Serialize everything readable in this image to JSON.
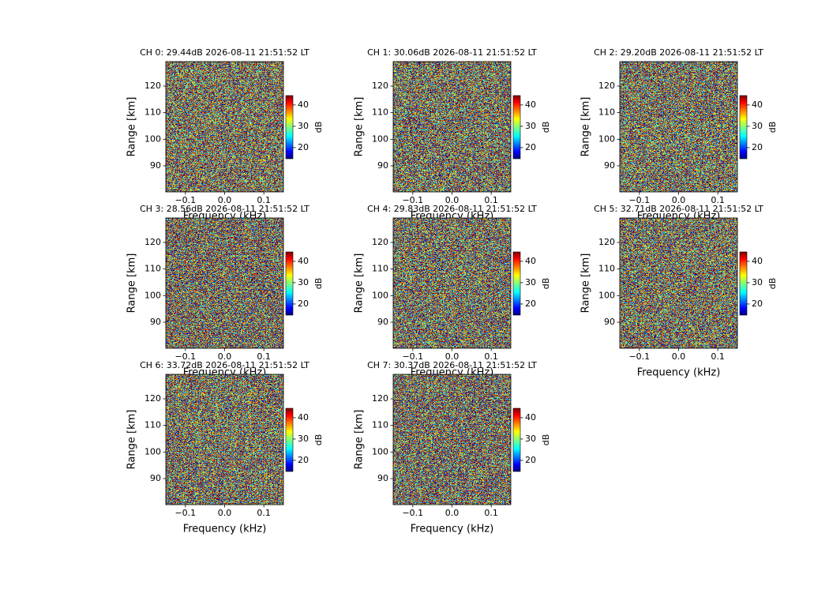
{
  "chart_data": [
    {
      "type": "heatmap",
      "title": "CH 0: 29.44dB 2026-08-11 21:51:52 LT",
      "xlabel": "Frequency (kHz)",
      "ylabel": "Range [km]",
      "xlim": [
        -0.15,
        0.15
      ],
      "xticks": [
        {
          "value": -0.1,
          "label": "−0.1"
        },
        {
          "value": 0,
          "label": "0.0"
        },
        0.1
      ],
      "ylim": [
        80.2,
        129.2
      ],
      "yticks": [
        90,
        100,
        110,
        120
      ],
      "colorbar": {
        "label": "dB",
        "lim": [
          14.8,
          44.4
        ],
        "ticks": [
          20,
          30,
          40
        ]
      }
    },
    {
      "type": "heatmap",
      "title": "CH 1: 30.06dB 2026-08-11 21:51:52 LT",
      "xlabel": "Frequency (kHz)",
      "ylabel": "Range [km]",
      "xlim": [
        -0.15,
        0.15
      ],
      "xticks": [
        {
          "value": -0.1,
          "label": "−0.1"
        },
        {
          "value": 0,
          "label": "0.0"
        },
        0.1
      ],
      "ylim": [
        80.2,
        129.2
      ],
      "yticks": [
        90,
        100,
        110,
        120
      ],
      "colorbar": {
        "label": "dB",
        "lim": [
          14.8,
          44.4
        ],
        "ticks": [
          20,
          30,
          40
        ]
      }
    },
    {
      "type": "heatmap",
      "title": "CH 2: 29.20dB 2026-08-11 21:51:52 LT",
      "xlabel": "Frequency (kHz)",
      "ylabel": "Range [km]",
      "xlim": [
        -0.15,
        0.15
      ],
      "xticks": [
        {
          "value": -0.1,
          "label": "−0.1"
        },
        {
          "value": 0,
          "label": "0.0"
        },
        0.1
      ],
      "ylim": [
        80.2,
        129.2
      ],
      "yticks": [
        90,
        100,
        110,
        120
      ],
      "colorbar": {
        "label": "dB",
        "lim": [
          14.8,
          44.4
        ],
        "ticks": [
          20,
          30,
          40
        ]
      }
    },
    {
      "type": "heatmap",
      "title": "CH 3: 28.56dB 2026-08-11 21:51:52 LT",
      "xlabel": "Frequency (kHz)",
      "ylabel": "Range [km]",
      "xlim": [
        -0.15,
        0.15
      ],
      "xticks": [
        {
          "value": -0.1,
          "label": "−0.1"
        },
        {
          "value": 0,
          "label": "0.0"
        },
        0.1
      ],
      "ylim": [
        80.2,
        129.2
      ],
      "yticks": [
        90,
        100,
        110,
        120
      ],
      "colorbar": {
        "label": "dB",
        "lim": [
          14.8,
          44.4
        ],
        "ticks": [
          20,
          30,
          40
        ]
      }
    },
    {
      "type": "heatmap",
      "title": "CH 4: 29.83dB 2026-08-11 21:51:52 LT",
      "xlabel": "Frequency (kHz)",
      "ylabel": "Range [km]",
      "xlim": [
        -0.15,
        0.15
      ],
      "xticks": [
        {
          "value": -0.1,
          "label": "−0.1"
        },
        {
          "value": 0,
          "label": "0.0"
        },
        0.1
      ],
      "ylim": [
        80.2,
        129.2
      ],
      "yticks": [
        90,
        100,
        110,
        120
      ],
      "colorbar": {
        "label": "dB",
        "lim": [
          14.8,
          44.4
        ],
        "ticks": [
          20,
          30,
          40
        ]
      }
    },
    {
      "type": "heatmap",
      "title": "CH 5: 32.71dB 2026-08-11 21:51:52 LT",
      "xlabel": "Frequency (kHz)",
      "ylabel": "Range [km]",
      "xlim": [
        -0.15,
        0.15
      ],
      "xticks": [
        {
          "value": -0.1,
          "label": "−0.1"
        },
        {
          "value": 0,
          "label": "0.0"
        },
        0.1
      ],
      "ylim": [
        80.2,
        129.2
      ],
      "yticks": [
        90,
        100,
        110,
        120
      ],
      "colorbar": {
        "label": "dB",
        "lim": [
          14.8,
          44.4
        ],
        "ticks": [
          20,
          30,
          40
        ]
      }
    },
    {
      "type": "heatmap",
      "title": "CH 6: 33.72dB 2026-08-11 21:51:52 LT",
      "xlabel": "Frequency (kHz)",
      "ylabel": "Range [km]",
      "xlim": [
        -0.15,
        0.15
      ],
      "xticks": [
        {
          "value": -0.1,
          "label": "−0.1"
        },
        {
          "value": 0,
          "label": "0.0"
        },
        0.1
      ],
      "ylim": [
        80.2,
        129.2
      ],
      "yticks": [
        90,
        100,
        110,
        120
      ],
      "colorbar": {
        "label": "dB",
        "lim": [
          14.8,
          44.4
        ],
        "ticks": [
          20,
          30,
          40
        ]
      }
    },
    {
      "type": "heatmap",
      "title": "CH 7: 30.37dB 2026-08-11 21:51:52 LT",
      "xlabel": "Frequency (kHz)",
      "ylabel": "Range [km]",
      "xlim": [
        -0.15,
        0.15
      ],
      "xticks": [
        {
          "value": -0.1,
          "label": "−0.1"
        },
        {
          "value": 0,
          "label": "0.0"
        },
        0.1
      ],
      "ylim": [
        80.2,
        129.2
      ],
      "yticks": [
        90,
        100,
        110,
        120
      ],
      "colorbar": {
        "label": "dB",
        "lim": [
          14.8,
          44.4
        ],
        "ticks": [
          20,
          30,
          40
        ]
      }
    }
  ]
}
